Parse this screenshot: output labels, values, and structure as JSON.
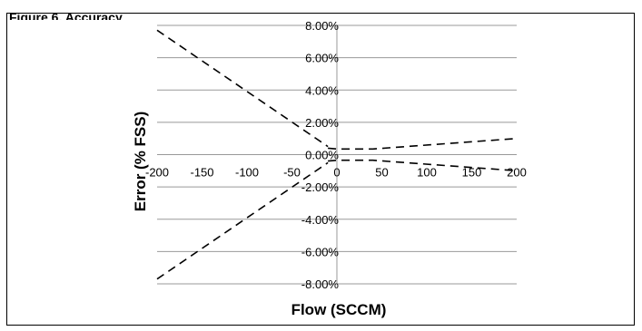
{
  "figure": {
    "heading": "Figure 6. Accuracy"
  },
  "chart_data": {
    "type": "line",
    "title": "",
    "xlabel": "Flow (SCCM)",
    "ylabel": "Error (% FSS)",
    "xlim": [
      -200,
      200
    ],
    "ylim": [
      -8,
      8
    ],
    "xticks": [
      "-200",
      "-150",
      "-100",
      "-50",
      "0",
      "50",
      "100",
      "150",
      "200"
    ],
    "yticks": [
      "8.00%",
      "6.00%",
      "4.00%",
      "2.00%",
      "0.00%",
      "-2.00%",
      "-4.00%",
      "-6.00%",
      "-8.00%"
    ],
    "grid": "horizontal",
    "line_style": "dashed",
    "line_color": "#000000",
    "grid_color": "#999999",
    "series": [
      {
        "x": [
          -200,
          -10
        ],
        "y": [
          7.7,
          0.5
        ]
      },
      {
        "x": [
          -200,
          -10
        ],
        "y": [
          -7.7,
          -0.5
        ]
      },
      {
        "x": [
          -10,
          0,
          40,
          200
        ],
        "y": [
          0.4,
          0.35,
          0.35,
          1.0
        ]
      },
      {
        "x": [
          -10,
          0,
          40,
          200
        ],
        "y": [
          -0.4,
          -0.35,
          -0.35,
          -1.0
        ]
      }
    ]
  }
}
